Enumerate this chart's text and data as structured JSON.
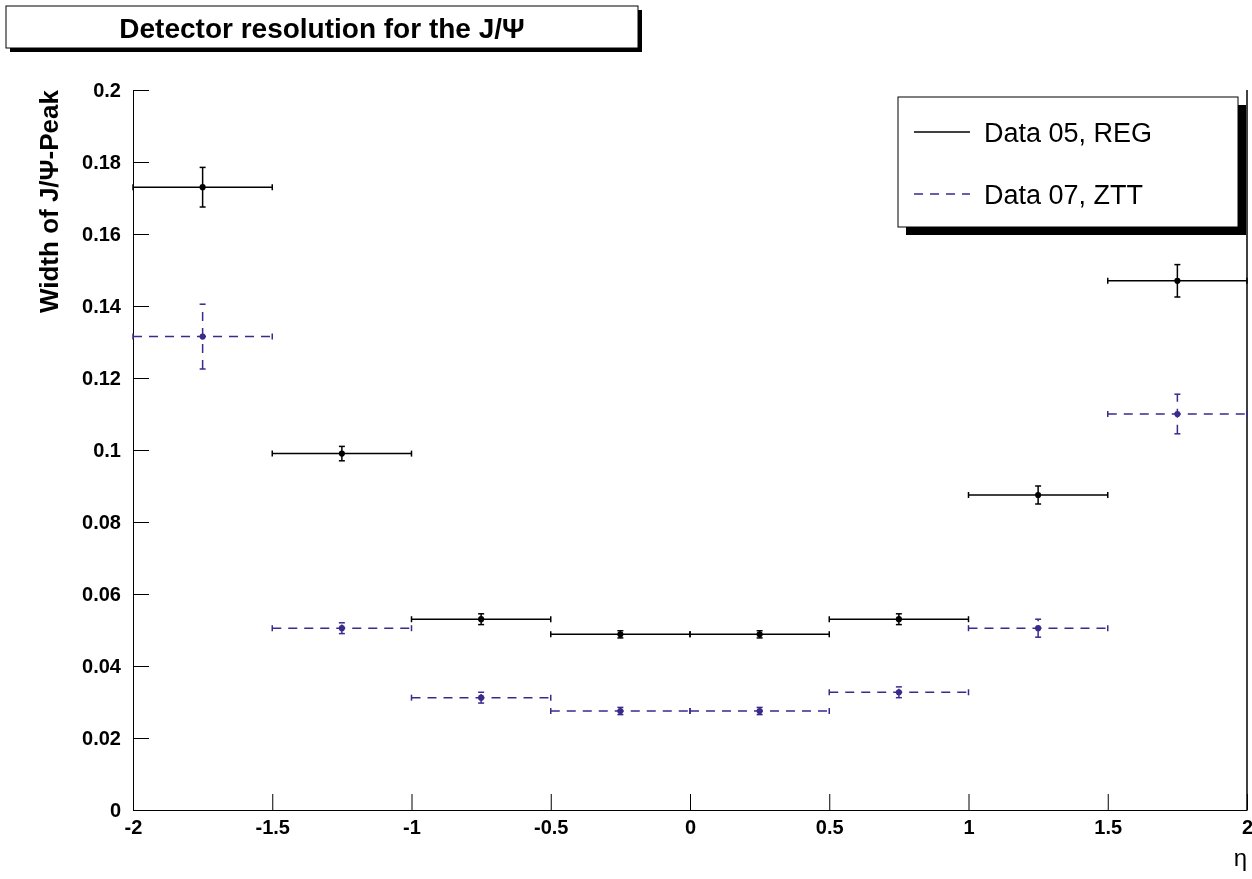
{
  "chart_data": {
    "type": "scatter",
    "title": "Detector resolution for the J/Ψ",
    "xlabel": "η",
    "ylabel": "Width of J/Ψ-Peak",
    "x": [
      -1.75,
      -1.25,
      -0.75,
      -0.25,
      0.25,
      0.75,
      1.25,
      1.75
    ],
    "xlim": [
      -2,
      2
    ],
    "ylim": [
      0,
      0.2
    ],
    "xticks": [
      -2,
      -1.5,
      -1,
      -0.5,
      0,
      0.5,
      1,
      1.5,
      2
    ],
    "yticks": [
      0,
      0.02,
      0.04,
      0.06,
      0.08,
      0.1,
      0.12,
      0.14,
      0.16,
      0.18,
      0.2
    ],
    "grid": false,
    "legend": "top right",
    "marker": "circle",
    "series": [
      {
        "name": "Data 05, REG",
        "color": "#000000",
        "line_style": "solid",
        "values": [
          0.173,
          0.099,
          0.053,
          0.0488,
          0.0488,
          0.053,
          0.0875,
          0.147
        ],
        "errors": [
          0.0055,
          0.002,
          0.0015,
          0.001,
          0.001,
          0.0015,
          0.0025,
          0.0045
        ],
        "xerrors": [
          0.25,
          0.25,
          0.25,
          0.25,
          0.25,
          0.25,
          0.25,
          0.25
        ]
      },
      {
        "name": "Data 07, ZTT",
        "color": "#3a2a8c",
        "line_style": "dashed",
        "values": [
          0.1315,
          0.0505,
          0.0312,
          0.0275,
          0.0275,
          0.0327,
          0.0505,
          0.11
        ],
        "errors": [
          0.009,
          0.0015,
          0.0015,
          0.001,
          0.001,
          0.0015,
          0.0025,
          0.0055
        ],
        "xerrors": [
          0.25,
          0.25,
          0.25,
          0.25,
          0.25,
          0.25,
          0.25,
          0.25
        ]
      }
    ]
  }
}
